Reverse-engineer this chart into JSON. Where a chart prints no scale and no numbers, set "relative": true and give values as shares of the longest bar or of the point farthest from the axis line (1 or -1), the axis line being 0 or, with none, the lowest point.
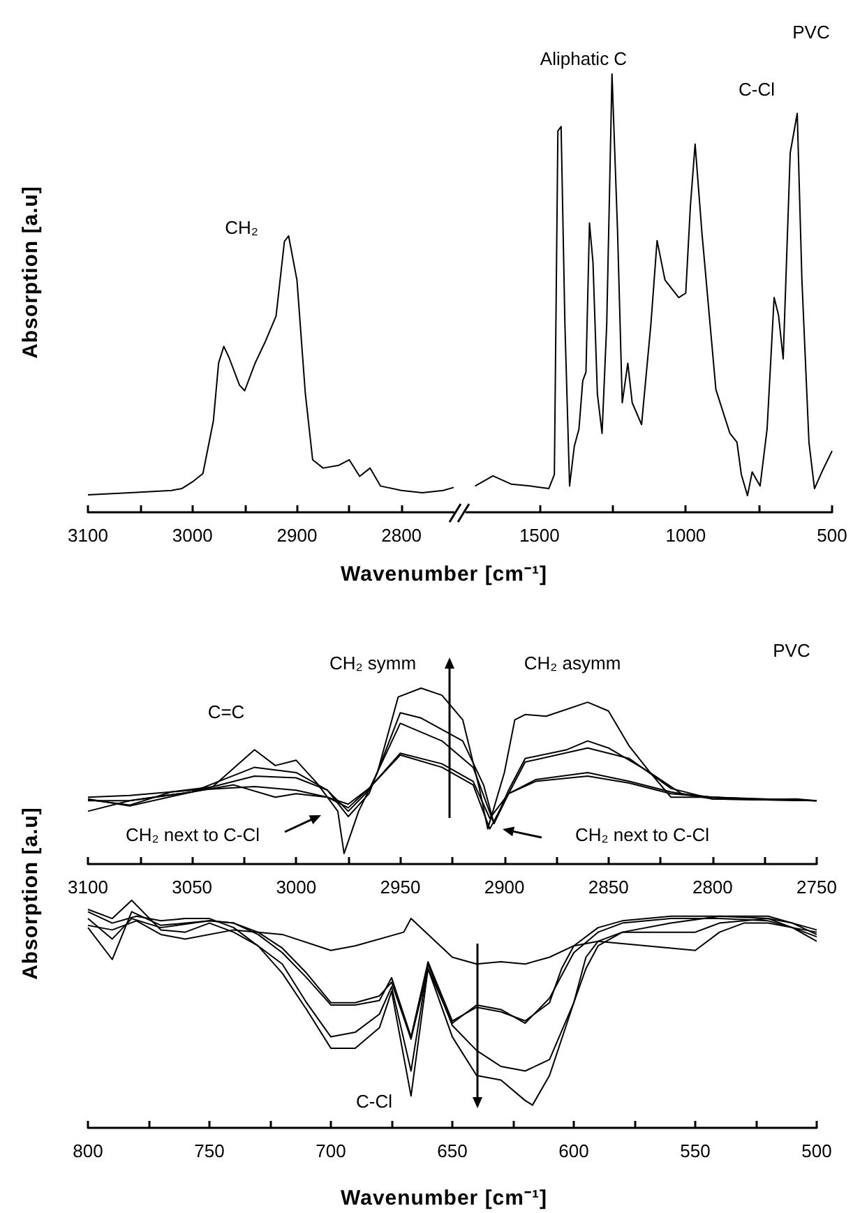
{
  "chart_data": [
    {
      "type": "line",
      "relative": true,
      "xlabel": "Wavenumber [cm⁻¹]",
      "ylabel": "Absorption [a.u]",
      "xlim": [
        3100,
        2750
      ],
      "xticks": [
        3100,
        {
          "value": 3050,
          "label": null
        },
        3000,
        {
          "value": 2950,
          "label": null
        },
        2900,
        {
          "value": 2850,
          "label": null
        },
        2800
      ],
      "annotations": [
        "CH₂"
      ],
      "series": [
        {
          "color": "#000000",
          "x": [
            3100,
            3060,
            3020,
            3010,
            3000,
            2990,
            2980,
            2975,
            2970,
            2965,
            2955,
            2950,
            2940,
            2930,
            2920,
            2912,
            2908,
            2900,
            2892,
            2885,
            2875,
            2860,
            2850,
            2840,
            2830,
            2820,
            2800,
            2780,
            2760,
            2750
          ],
          "values": [
            0.063,
            0.071,
            0.079,
            0.086,
            0.11,
            0.14,
            0.33,
            0.54,
            0.6,
            0.56,
            0.46,
            0.44,
            0.54,
            0.62,
            0.71,
            0.98,
            1,
            0.84,
            0.43,
            0.19,
            0.16,
            0.17,
            0.19,
            0.13,
            0.16,
            0.095,
            0.079,
            0.071,
            0.079,
            0.09
          ]
        }
      ]
    },
    {
      "type": "line",
      "relative": true,
      "xlim": [
        1750,
        500
      ],
      "xticks": [
        1500,
        {
          "value": 1250,
          "label": null
        },
        1000,
        {
          "value": 750,
          "label": null
        },
        500
      ],
      "annotations": [
        "Aliphatic C",
        "C-Cl",
        "PVC"
      ],
      "series": [
        {
          "color": "#000000",
          "x": [
            1720,
            1659,
            1595,
            1532,
            1468,
            1449,
            1437,
            1426,
            1413,
            1397,
            1381,
            1365,
            1352,
            1341,
            1329,
            1317,
            1302,
            1286,
            1270,
            1252,
            1233,
            1217,
            1198,
            1183,
            1151,
            1119,
            1098,
            1071,
            1024,
            1000,
            984,
            968,
            945,
            897,
            849,
            825,
            810,
            789,
            773,
            746,
            722,
            698,
            683,
            667,
            643,
            619,
            603,
            579,
            560,
            532,
            500
          ],
          "values": [
            0.06,
            0.083,
            0.064,
            0.06,
            0.054,
            0.086,
            0.87,
            0.88,
            0.43,
            0.06,
            0.15,
            0.19,
            0.3,
            0.32,
            0.66,
            0.57,
            0.27,
            0.18,
            0.43,
            1,
            0.64,
            0.25,
            0.34,
            0.25,
            0.2,
            0.43,
            0.62,
            0.53,
            0.49,
            0.5,
            0.7,
            0.84,
            0.64,
            0.28,
            0.18,
            0.16,
            0.086,
            0.038,
            0.092,
            0.06,
            0.19,
            0.49,
            0.45,
            0.35,
            0.82,
            0.91,
            0.53,
            0.16,
            0.054,
            0.096,
            0.14
          ]
        }
      ]
    },
    {
      "type": "line",
      "relative": true,
      "ylabel": "Absorption [a.u]",
      "xlim": [
        3100,
        2750
      ],
      "xticks": [
        3100,
        {
          "value": 3075,
          "label": null
        },
        3050,
        {
          "value": 3025,
          "label": null
        },
        3000,
        {
          "value": 2975,
          "label": null
        },
        2950,
        {
          "value": 2925,
          "label": null
        },
        2900,
        {
          "value": 2875,
          "label": null
        },
        2850,
        {
          "value": 2825,
          "label": null
        },
        2800,
        {
          "value": 2775,
          "label": null
        },
        2750
      ],
      "annotations": [
        "C=C",
        "CH₂ symm",
        "CH₂ asymm",
        "CH₂ next to C-Cl",
        "CH₂ next to C-Cl",
        "PVC"
      ],
      "series": [
        {
          "color": "#000000",
          "x": [
            3100,
            3080,
            3060,
            3040,
            3020,
            3010,
            3000,
            2990,
            2980,
            2977,
            2970,
            2961,
            2951,
            2940,
            2930,
            2920,
            2912,
            2908,
            2900,
            2895,
            2890,
            2880,
            2860,
            2850,
            2840,
            2830,
            2820,
            2800,
            2780,
            2760,
            2750
          ],
          "values": [
            0.366,
            0.335,
            0.41,
            0.44,
            0.65,
            0.56,
            0.59,
            0.46,
            0.3,
            0.06,
            0.3,
            0.52,
            0.95,
            1,
            0.96,
            0.82,
            0.43,
            0.2,
            0.52,
            0.82,
            0.85,
            0.84,
            0.92,
            0.87,
            0.67,
            0.52,
            0.38,
            0.38,
            0.366,
            0.37,
            0.36
          ]
        },
        {
          "color": "#000000",
          "x": [
            3100,
            3080,
            3050,
            3020,
            3000,
            2985,
            2975,
            2965,
            2950,
            2940,
            2920,
            2910,
            2905,
            2898,
            2890,
            2870,
            2860,
            2850,
            2830,
            2815,
            2800,
            2780,
            2750
          ],
          "values": [
            0.37,
            0.33,
            0.41,
            0.55,
            0.52,
            0.42,
            0.27,
            0.4,
            0.86,
            0.83,
            0.7,
            0.45,
            0.23,
            0.42,
            0.6,
            0.65,
            0.7,
            0.66,
            0.52,
            0.4,
            0.38,
            0.37,
            0.36
          ]
        },
        {
          "color": "#000000",
          "x": [
            3100,
            3080,
            3050,
            3020,
            3000,
            2985,
            2975,
            2965,
            2950,
            2930,
            2915,
            2905,
            2898,
            2890,
            2860,
            2840,
            2820,
            2800,
            2750
          ],
          "values": [
            0.3,
            0.36,
            0.41,
            0.5,
            0.49,
            0.42,
            0.3,
            0.42,
            0.8,
            0.7,
            0.55,
            0.23,
            0.4,
            0.58,
            0.66,
            0.6,
            0.43,
            0.37,
            0.36
          ]
        },
        {
          "color": "#000000",
          "x": [
            3100,
            3080,
            3050,
            3020,
            3000,
            2985,
            2975,
            2965,
            2950,
            2930,
            2915,
            2907,
            2898,
            2885,
            2860,
            2840,
            2820,
            2800,
            2750
          ],
          "values": [
            0.38,
            0.39,
            0.42,
            0.44,
            0.42,
            0.38,
            0.32,
            0.43,
            0.63,
            0.57,
            0.47,
            0.26,
            0.4,
            0.48,
            0.52,
            0.47,
            0.41,
            0.37,
            0.36
          ]
        },
        {
          "color": "#000000",
          "x": [
            3100,
            3080,
            3050,
            3030,
            3010,
            3000,
            2985,
            2975,
            2965,
            2950,
            2930,
            2915,
            2907,
            2898,
            2885,
            2860,
            2840,
            2820,
            2800,
            2750
          ],
          "values": [
            0.36,
            0.36,
            0.41,
            0.45,
            0.38,
            0.4,
            0.38,
            0.34,
            0.43,
            0.62,
            0.55,
            0.45,
            0.2,
            0.4,
            0.47,
            0.5,
            0.46,
            0.4,
            0.38,
            0.36
          ]
        }
      ]
    },
    {
      "type": "line",
      "relative": true,
      "xlabel": "Wavenumber [cm⁻¹]",
      "xlim": [
        800,
        500
      ],
      "xticks": [
        800,
        {
          "value": 775,
          "label": null
        },
        750,
        {
          "value": 725,
          "label": null
        },
        700,
        {
          "value": 675,
          "label": null
        },
        650,
        {
          "value": 625,
          "label": null
        },
        600,
        {
          "value": 575,
          "label": null
        },
        550,
        {
          "value": 525,
          "label": null
        },
        500
      ],
      "annotations": [
        "C-Cl"
      ],
      "series": [
        {
          "color": "#000000",
          "x": [
            800,
            790,
            780,
            770,
            760,
            740,
            720,
            700,
            690,
            670,
            667,
            650,
            640,
            630,
            620,
            610,
            600,
            590,
            570,
            560,
            550,
            540,
            530,
            520,
            510,
            500
          ],
          "values": [
            0.89,
            0.87,
            0.91,
            0.85,
            0.83,
            0.87,
            0.85,
            0.78,
            0.8,
            0.86,
            0.92,
            0.75,
            0.72,
            0.73,
            0.72,
            0.75,
            0.8,
            0.82,
            0.8,
            0.79,
            0.78,
            0.86,
            0.9,
            0.9,
            0.88,
            0.86
          ]
        },
        {
          "color": "#000000",
          "x": [
            800,
            790,
            782,
            770,
            750,
            740,
            730,
            720,
            710,
            700,
            690,
            680,
            675,
            667,
            660,
            650,
            640,
            630,
            620,
            610,
            605,
            600,
            590,
            580,
            560,
            540,
            520,
            510,
            500
          ],
          "values": [
            0.88,
            0.74,
            0.95,
            0.89,
            0.91,
            0.9,
            0.85,
            0.77,
            0.66,
            0.54,
            0.54,
            0.56,
            0.66,
            0.4,
            0.73,
            0.47,
            0.53,
            0.51,
            0.47,
            0.55,
            0.7,
            0.8,
            0.88,
            0.91,
            0.93,
            0.93,
            0.93,
            0.9,
            0.87
          ]
        },
        {
          "color": "#000000",
          "x": [
            800,
            790,
            782,
            770,
            750,
            740,
            730,
            720,
            710,
            700,
            690,
            680,
            675,
            667,
            660,
            650,
            640,
            630,
            620,
            610,
            600,
            590,
            580,
            560,
            540,
            520,
            510,
            500
          ],
          "values": [
            0.92,
            0.83,
            0.92,
            0.88,
            0.91,
            0.9,
            0.86,
            0.79,
            0.68,
            0.55,
            0.55,
            0.58,
            0.64,
            0.39,
            0.7,
            0.46,
            0.54,
            0.52,
            0.46,
            0.57,
            0.77,
            0.86,
            0.9,
            0.92,
            0.92,
            0.91,
            0.88,
            0.84
          ]
        },
        {
          "color": "#000000",
          "x": [
            800,
            790,
            782,
            770,
            760,
            750,
            740,
            730,
            720,
            710,
            700,
            690,
            680,
            675,
            667,
            660,
            650,
            640,
            630,
            620,
            610,
            600,
            595,
            590,
            580,
            560,
            550,
            540,
            520,
            510,
            500
          ],
          "values": [
            0.96,
            0.92,
            1,
            0.87,
            0.86,
            0.9,
            0.86,
            0.8,
            0.72,
            0.55,
            0.4,
            0.42,
            0.5,
            0.62,
            0.25,
            0.72,
            0.45,
            0.34,
            0.27,
            0.25,
            0.3,
            0.55,
            0.75,
            0.82,
            0.86,
            0.86,
            0.86,
            0.9,
            0.92,
            0.88,
            0.82
          ]
        },
        {
          "color": "#000000",
          "x": [
            800,
            790,
            780,
            770,
            760,
            750,
            740,
            730,
            720,
            710,
            700,
            690,
            680,
            675,
            667,
            660,
            650,
            640,
            630,
            620,
            617,
            610,
            600,
            595,
            590,
            580,
            560,
            540,
            520,
            510,
            500
          ],
          "values": [
            0.95,
            0.9,
            0.93,
            0.91,
            0.92,
            0.92,
            0.88,
            0.8,
            0.68,
            0.52,
            0.35,
            0.35,
            0.44,
            0.6,
            0.14,
            0.7,
            0.4,
            0.23,
            0.21,
            0.12,
            0.1,
            0.23,
            0.55,
            0.7,
            0.8,
            0.86,
            0.9,
            0.93,
            0.92,
            0.9,
            0.85
          ]
        }
      ]
    }
  ]
}
